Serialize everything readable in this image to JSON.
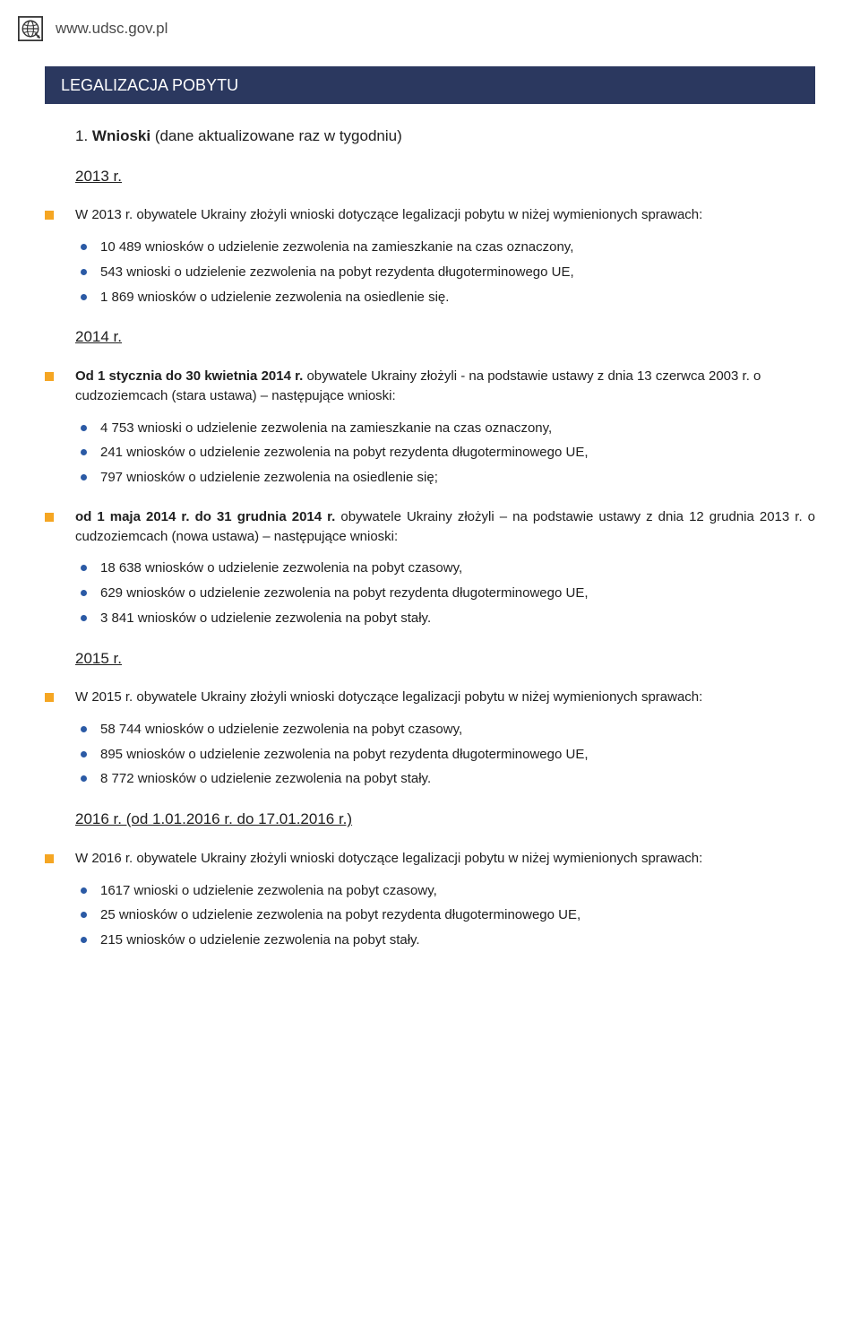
{
  "colors": {
    "banner_bg": "#2b385f",
    "banner_text": "#ffffff",
    "orange_marker": "#f5a623",
    "bullet_blue": "#2b5aa5",
    "body_text": "#202020",
    "page_bg": "#ffffff"
  },
  "header": {
    "url": "www.udsc.gov.pl"
  },
  "banner": "LEGALIZACJA POBYTU",
  "section": {
    "number": "1.",
    "title_bold": "Wnioski",
    "title_rest": " (dane aktualizowane raz w tygodniu)"
  },
  "blocks": [
    {
      "year": "2013 r.",
      "lead_bold": "",
      "lead_plain": "W 2013 r. obywatele Ukrainy złożyli wnioski dotyczące legalizacji pobytu w niżej wymienionych sprawach:",
      "justify": true,
      "items": [
        "10 489 wniosków o udzielenie zezwolenia na zamieszkanie na czas oznaczony,",
        " 543 wnioski o udzielenie zezwolenia na pobyt rezydenta długoterminowego UE,",
        " 1 869 wniosków o udzielenie zezwolenia na osiedlenie się."
      ]
    },
    {
      "year": "2014 r.",
      "lead_bold": "Od 1 stycznia do 30 kwietnia 2014 r.",
      "lead_plain": " obywatele Ukrainy złożyli - na podstawie ustawy z dnia 13 czerwca 2003 r. o cudzoziemcach (stara ustawa) – następujące wnioski:",
      "justify": false,
      "items": [
        "4 753 wnioski o udzielenie zezwolenia na zamieszkanie na czas oznaczony,",
        "241 wniosków o udzielenie zezwolenia na pobyt rezydenta długoterminowego UE,",
        "797 wniosków o udzielenie zezwolenia na osiedlenie się;"
      ]
    },
    {
      "year": "",
      "lead_bold": "od 1 maja 2014 r. do 31 grudnia 2014 r.",
      "lead_plain": " obywatele Ukrainy złożyli – na podstawie ustawy z dnia 12 grudnia 2013 r. o cudzoziemcach (nowa ustawa) – następujące wnioski:",
      "justify": true,
      "items": [
        "18 638 wniosków o udzielenie zezwolenia na pobyt czasowy,",
        "629 wniosków o udzielenie zezwolenia na pobyt rezydenta długoterminowego UE,",
        "3 841 wniosków o udzielenie zezwolenia na pobyt stały."
      ]
    },
    {
      "year": "2015 r.",
      "lead_bold": "",
      "lead_plain": "W 2015 r. obywatele Ukrainy złożyli wnioski dotyczące legalizacji pobytu w niżej wymienionych sprawach:",
      "justify": true,
      "items": [
        "58 744 wniosków o udzielenie zezwolenia na pobyt czasowy,",
        "895 wniosków o udzielenie zezwolenia na pobyt rezydenta długoterminowego UE,",
        "8 772 wniosków o udzielenie zezwolenia na pobyt stały."
      ]
    },
    {
      "year": "2016 r. (od 1.01.2016 r. do 17.01.2016 r.)",
      "lead_bold": "",
      "lead_plain": "W 2016 r. obywatele Ukrainy złożyli wnioski dotyczące legalizacji pobytu w niżej wymienionych sprawach:",
      "justify": true,
      "items": [
        "1617 wnioski o udzielenie zezwolenia na pobyt czasowy,",
        "25 wniosków o udzielenie zezwolenia na pobyt rezydenta długoterminowego UE,",
        "215 wniosków o udzielenie zezwolenia na pobyt stały."
      ]
    }
  ]
}
